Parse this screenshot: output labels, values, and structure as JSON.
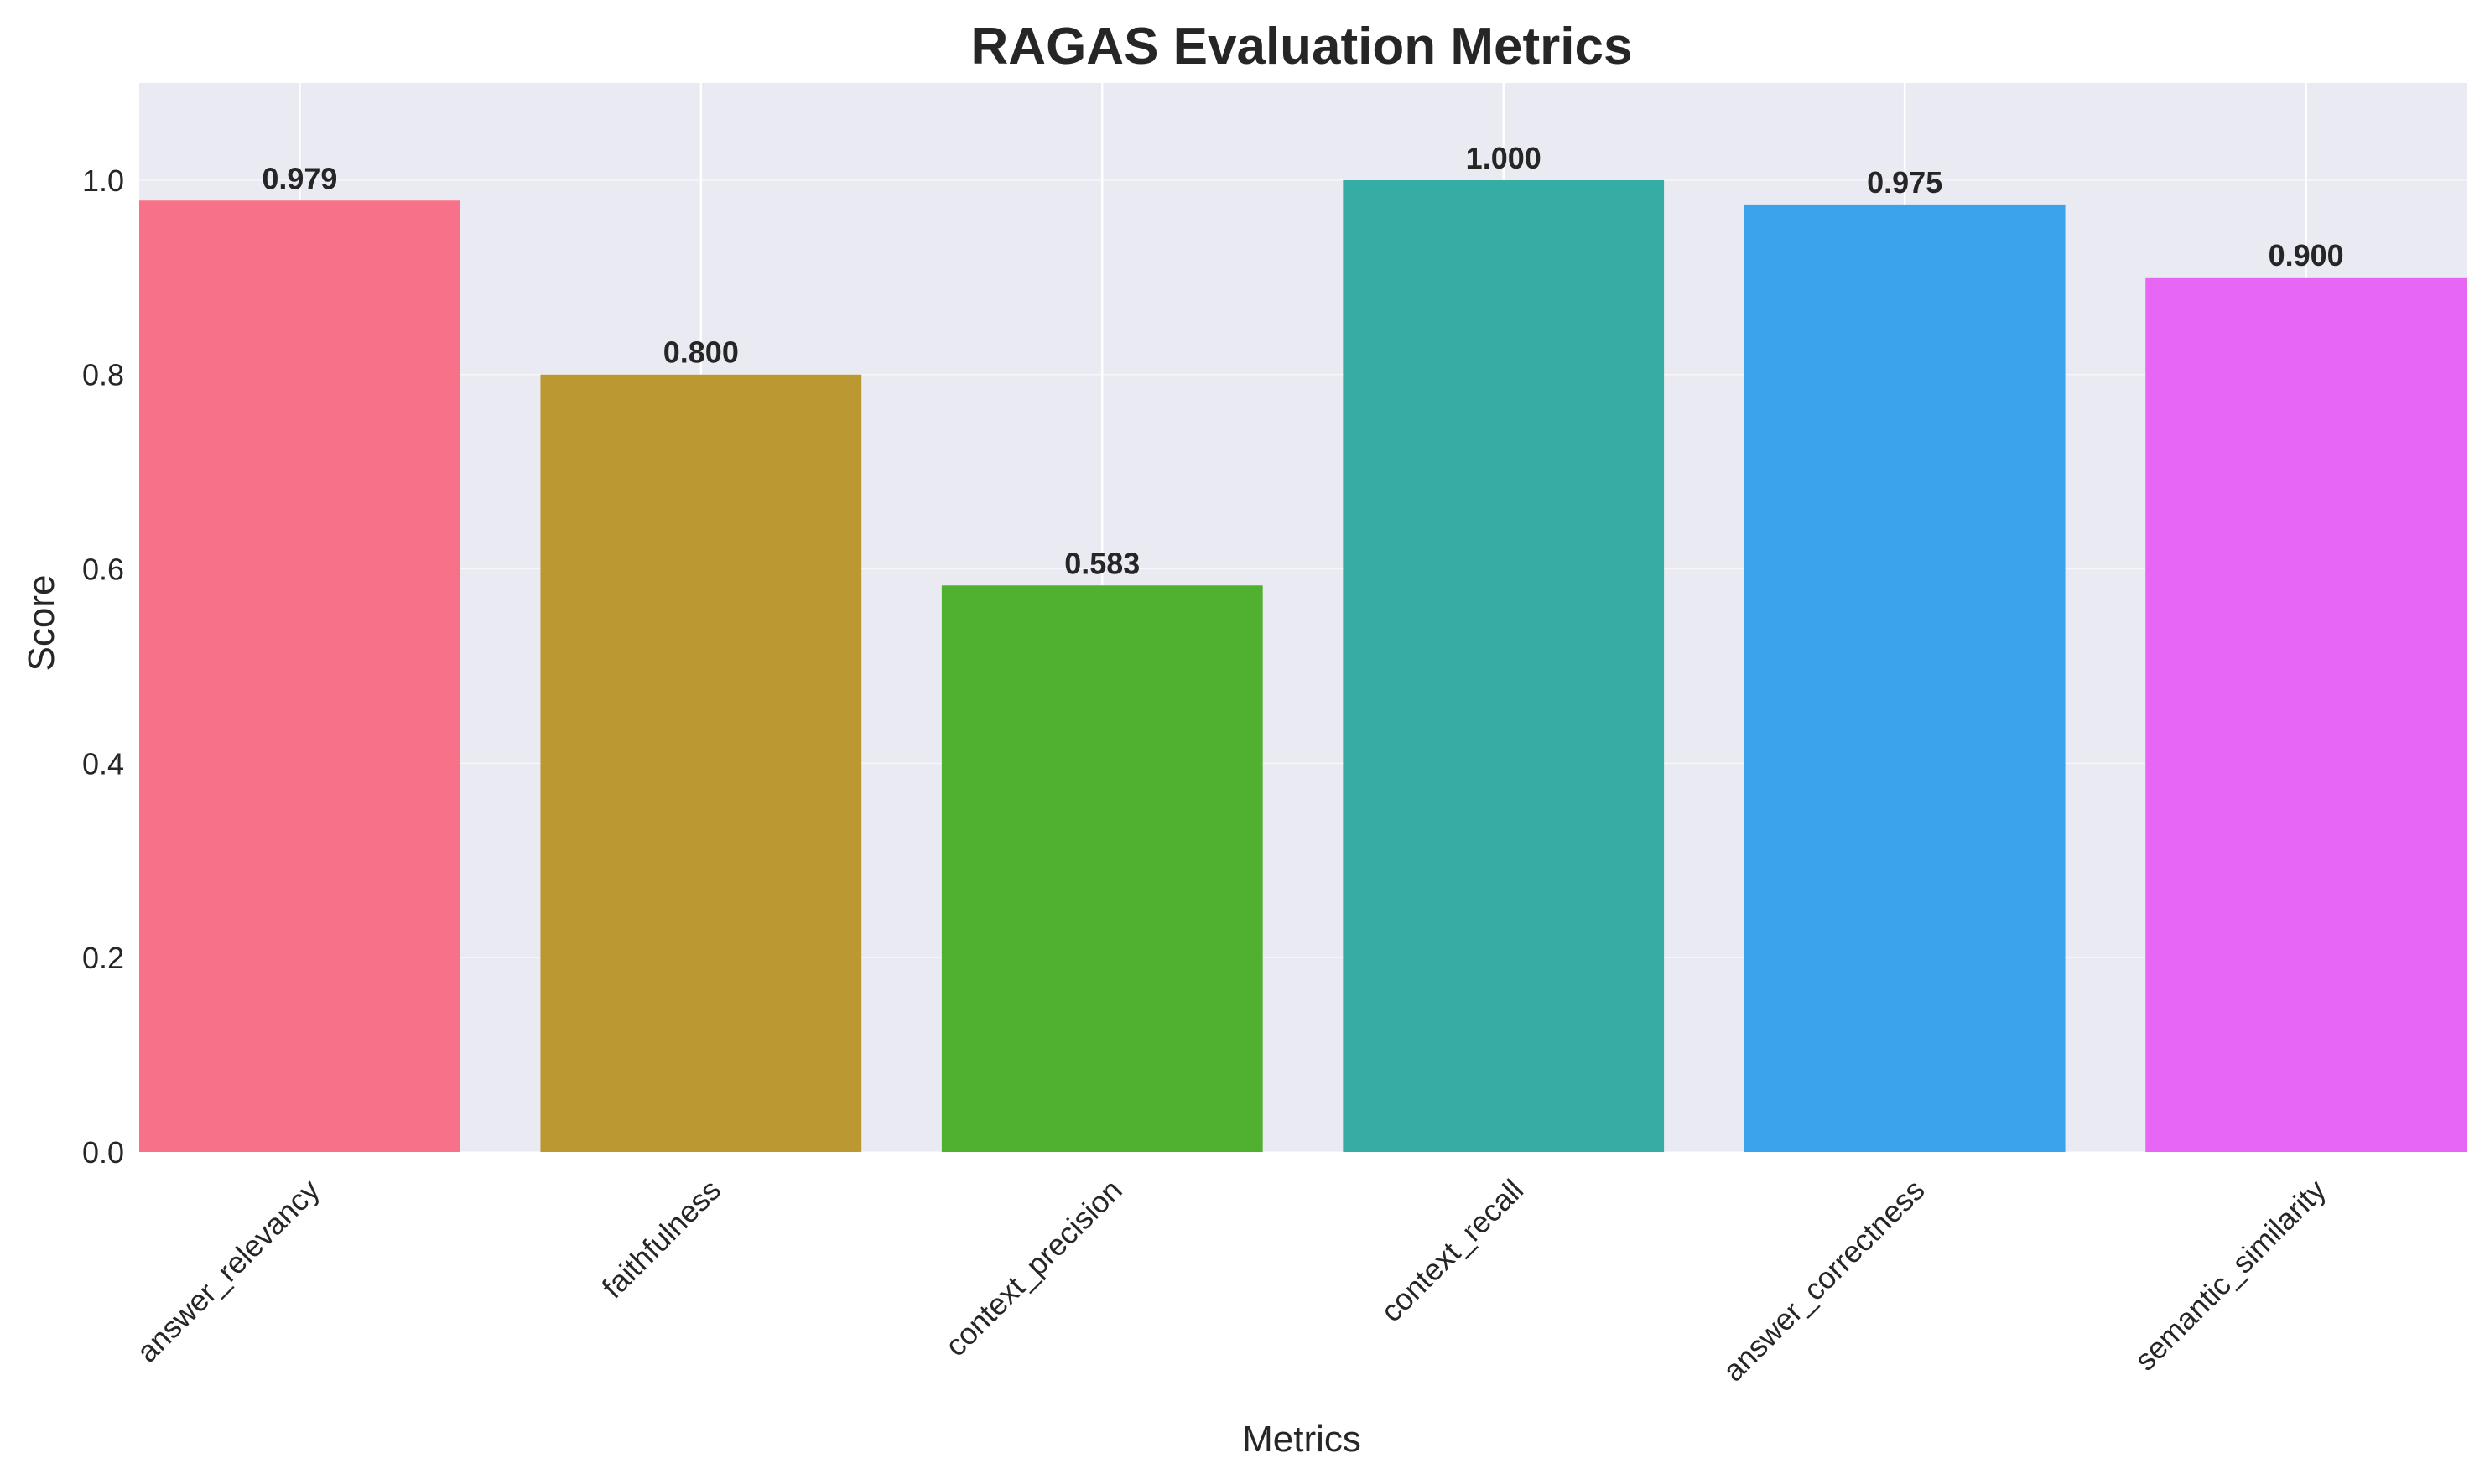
{
  "chart_data": {
    "type": "bar",
    "title": "RAGAS Evaluation Metrics",
    "xlabel": "Metrics",
    "ylabel": "Score",
    "categories": [
      "answer_relevancy",
      "faithfulness",
      "context_precision",
      "context_recall",
      "answer_correctness",
      "semantic_similarity"
    ],
    "values": [
      0.979,
      0.8,
      0.583,
      1.0,
      0.975,
      0.9
    ],
    "value_labels": [
      "0.979",
      "0.800",
      "0.583",
      "1.000",
      "0.975",
      "0.900"
    ],
    "bar_colors": [
      "#f77189",
      "#bb9832",
      "#50b131",
      "#36ada4",
      "#3ba3ec",
      "#e866f4"
    ],
    "ylim": [
      0,
      1.1
    ],
    "yticks": [
      0.0,
      0.2,
      0.4,
      0.6,
      0.8,
      1.0
    ],
    "ytick_labels": [
      "0.0",
      "0.2",
      "0.4",
      "0.6",
      "0.8",
      "1.0"
    ],
    "grid": true,
    "background_color": "#eaeaf2",
    "grid_color": "#ffffff"
  }
}
